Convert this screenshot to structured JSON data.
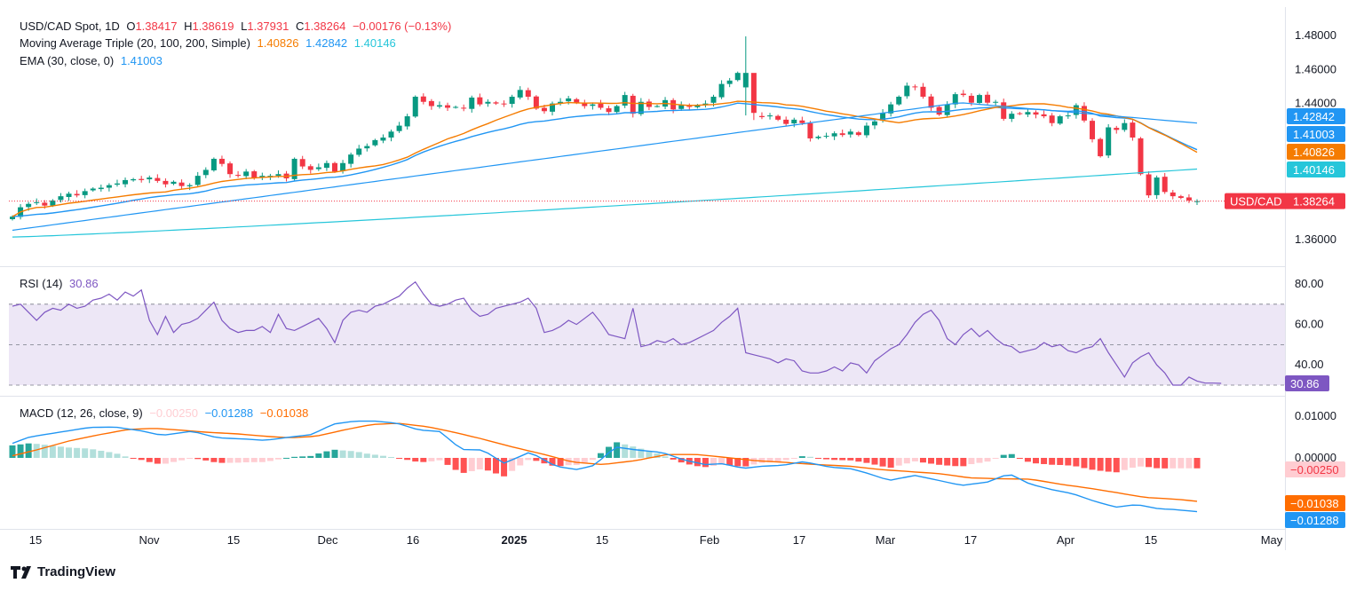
{
  "colors": {
    "up": "#089981",
    "down": "#f23645",
    "ma20": "#f57c00",
    "ma100": "#2196f3",
    "ma200": "#26c6da",
    "ema": "#2196f3",
    "rsi": "#7e57c2",
    "rsi_band": "#ede7f6",
    "macd": "#2196f3",
    "signal": "#ff6d00",
    "hist_up_strong": "#26a69a",
    "hist_up_weak": "#b2dfdb",
    "hist_down_strong": "#ff5252",
    "hist_down_weak": "#ffcdd2",
    "price_line": "#f23645"
  },
  "header": {
    "symbol": "USD/CAD Spot, 1D",
    "o_label": "O",
    "o_value": "1.38417",
    "h_label": "H",
    "h_value": "1.38619",
    "l_label": "L",
    "l_value": "1.37931",
    "c_label": "C",
    "c_value": "1.38264",
    "change": "−0.00176 (−0.13%)"
  },
  "ma_legend": {
    "label": "Moving Average Triple (20, 100, 200, Simple)",
    "v20": "1.40826",
    "v100": "1.42842",
    "v200": "1.40146"
  },
  "ema_legend": {
    "label": "EMA (30, close, 0)",
    "value": "1.41003"
  },
  "rsi_legend": {
    "label": "RSI (14)",
    "value": "30.86"
  },
  "macd_legend": {
    "label": "MACD (12, 26, close, 9)",
    "hist": "−0.00250",
    "macd": "−0.01288",
    "signal": "−0.01038"
  },
  "price_tag_label": "USD/CAD",
  "branding": "TradingView",
  "chart_data": [
    {
      "type": "candlestick",
      "title": "USD/CAD Spot, 1D",
      "x_tick_labels": [
        "15",
        "Nov",
        "15",
        "Dec",
        "16",
        "2025",
        "15",
        "Feb",
        "17",
        "Mar",
        "17",
        "Apr",
        "15",
        "May"
      ],
      "y_ticks": [
        "1.48000",
        "1.46000",
        "1.44000",
        "1.36000"
      ],
      "y_tags": [
        "1.42842",
        "1.41003",
        "1.40826",
        "1.40146",
        "1.38264"
      ],
      "ylim": [
        1.35,
        1.483
      ],
      "closes": [
        1.3735,
        1.379,
        1.381,
        1.382,
        1.38,
        1.383,
        1.3855,
        1.387,
        1.386,
        1.3885,
        1.39,
        1.3905,
        1.392,
        1.393,
        1.395,
        1.3955,
        1.395,
        1.3965,
        1.3945,
        1.3925,
        1.394,
        1.3915,
        1.392,
        1.3975,
        1.401,
        1.4075,
        1.4045,
        1.3985,
        1.3975,
        1.4,
        1.396,
        1.3975,
        1.3975,
        1.3985,
        1.396,
        1.4075,
        1.403,
        1.401,
        1.4025,
        1.405,
        1.4,
        1.405,
        1.41,
        1.4135,
        1.415,
        1.4185,
        1.42,
        1.4235,
        1.427,
        1.4325,
        1.444,
        1.441,
        1.4385,
        1.439,
        1.4375,
        1.438,
        1.437,
        1.4435,
        1.4395,
        1.441,
        1.44,
        1.4395,
        1.444,
        1.448,
        1.444,
        1.437,
        1.4355,
        1.44,
        1.441,
        1.443,
        1.4405,
        1.4385,
        1.4395,
        1.4375,
        1.435,
        1.4385,
        1.445,
        1.434,
        1.441,
        1.438,
        1.4385,
        1.442,
        1.4365,
        1.439,
        1.438,
        1.439,
        1.44,
        1.444,
        1.4515,
        1.4535,
        1.458,
        1.4345,
        1.4325,
        1.432,
        1.433,
        1.4305,
        1.428,
        1.4305,
        1.4285,
        1.4195,
        1.4205,
        1.421,
        1.4225,
        1.4215,
        1.4235,
        1.4215,
        1.427,
        1.4295,
        1.4345,
        1.4395,
        1.444,
        1.4505,
        1.45,
        1.444,
        1.4375,
        1.4335,
        1.4395,
        1.4455,
        1.445,
        1.4405,
        1.445,
        1.4405,
        1.441,
        1.431,
        1.434,
        1.434,
        1.435,
        1.4335,
        1.4325,
        1.4285,
        1.4325,
        1.433,
        1.439,
        1.43,
        1.419,
        1.409,
        1.426,
        1.4245,
        1.4285,
        1.42,
        1.3985,
        1.386,
        1.3965,
        1.388,
        1.3855,
        1.3845,
        1.383,
        1.3826
      ],
      "series": [
        {
          "name": "MA 20",
          "value_label": "1.40826"
        },
        {
          "name": "MA 100",
          "value_label": "1.42842"
        },
        {
          "name": "MA 200",
          "value_label": "1.40146"
        },
        {
          "name": "EMA 30",
          "value_label": "1.41003"
        }
      ]
    },
    {
      "type": "line",
      "title": "RSI (14)",
      "y_ticks": [
        "80.00",
        "60.00",
        "40.00"
      ],
      "ylim": [
        24,
        86
      ],
      "band": [
        30,
        70
      ],
      "midline": 50,
      "last_value": 30.86,
      "values": [
        69,
        70,
        66,
        62,
        66,
        68,
        67,
        70,
        68,
        69,
        72,
        73,
        75,
        72,
        76,
        74,
        77,
        62,
        55,
        64,
        56,
        60,
        61,
        63,
        67,
        71,
        62,
        58,
        56,
        57,
        57,
        59,
        56,
        65,
        58,
        57,
        59,
        61,
        63,
        58,
        51,
        62,
        66,
        67,
        66,
        69,
        70,
        72,
        74,
        78,
        81,
        75,
        70,
        69,
        70,
        72,
        73,
        67,
        64,
        65,
        68,
        69,
        70,
        71,
        73,
        68,
        56,
        57,
        59,
        62,
        60,
        63,
        66,
        61,
        55,
        54,
        53,
        68,
        49,
        50,
        52,
        51,
        53,
        50,
        51,
        53,
        55,
        57,
        61,
        64,
        68,
        46,
        45,
        44,
        43,
        41,
        43,
        42,
        37,
        36,
        36,
        37,
        39,
        37,
        41,
        40,
        36,
        42,
        45,
        48,
        50,
        55,
        61,
        65,
        67,
        62,
        53,
        50,
        55,
        58,
        54,
        57,
        53,
        50,
        49,
        46,
        47,
        48,
        51,
        49,
        50,
        47,
        46,
        48,
        49,
        53,
        46,
        40,
        34,
        41,
        44,
        46,
        40,
        36,
        30,
        30,
        34,
        32,
        31,
        31,
        30.86
      ]
    },
    {
      "type": "line",
      "title": "MACD (12, 26, close, 9)",
      "y_ticks": [
        "0.01000",
        "0.00000"
      ],
      "y_tags": [
        "−0.00250",
        "−0.01038",
        "−0.01288"
      ],
      "ylim": [
        -0.0145,
        0.0123
      ],
      "series": [
        {
          "name": "MACD",
          "value_label": "−0.01288"
        },
        {
          "name": "Signal",
          "value_label": "−0.01038"
        },
        {
          "name": "Histogram",
          "value_label": "−0.00250"
        }
      ],
      "macd_keyframes": [
        [
          0,
          0.0035
        ],
        [
          4,
          0.005
        ],
        [
          10,
          0.006
        ],
        [
          18,
          0.0073
        ],
        [
          24,
          0.0074
        ],
        [
          30,
          0.0065
        ],
        [
          35,
          0.0054
        ],
        [
          42,
          0.0064
        ],
        [
          48,
          0.0048
        ],
        [
          55,
          0.0045
        ],
        [
          59,
          0.0042
        ],
        [
          65,
          0.005
        ],
        [
          70,
          0.0056
        ],
        [
          75,
          0.0081
        ],
        [
          80,
          0.0088
        ],
        [
          85,
          0.0088
        ],
        [
          90,
          0.0083
        ],
        [
          95,
          0.0067
        ],
        [
          100,
          0.0063
        ],
        [
          105,
          0.002
        ],
        [
          110,
          0.0019
        ],
        [
          115,
          -0.0013
        ],
        [
          121,
          0.0014
        ],
        [
          127,
          -0.002
        ],
        [
          132,
          -0.0028
        ],
        [
          136,
          -0.0018
        ],
        [
          141,
          0.0026
        ],
        [
          146,
          0.0019
        ],
        [
          152,
          0.0013
        ],
        [
          157,
          -0.0005
        ],
        [
          162,
          -0.0016
        ],
        [
          166,
          -0.0014
        ],
        [
          171,
          -0.0025
        ],
        [
          175,
          -0.002
        ],
        [
          180,
          -0.0018
        ],
        [
          185,
          -0.0009
        ],
        [
          191,
          -0.0022
        ],
        [
          196,
          -0.0026
        ],
        [
          200,
          -0.0037
        ],
        [
          205,
          -0.0054
        ],
        [
          211,
          -0.0042
        ],
        [
          217,
          -0.0055
        ],
        [
          222,
          -0.0066
        ],
        [
          228,
          -0.0058
        ],
        [
          233,
          -0.0038
        ],
        [
          238,
          -0.0063
        ],
        [
          243,
          -0.0076
        ],
        [
          248,
          -0.0086
        ],
        [
          253,
          -0.0104
        ],
        [
          258,
          -0.0118
        ],
        [
          263,
          -0.0112
        ],
        [
          268,
          -0.0122
        ],
        [
          272,
          -0.0124
        ],
        [
          277,
          -0.0129
        ]
      ],
      "signal_keyframes": [
        [
          0,
          0.0005
        ],
        [
          6,
          0.002
        ],
        [
          13,
          0.004
        ],
        [
          20,
          0.0055
        ],
        [
          27,
          0.0068
        ],
        [
          33,
          0.0071
        ],
        [
          40,
          0.0066
        ],
        [
          46,
          0.0061
        ],
        [
          52,
          0.0058
        ],
        [
          59,
          0.0052
        ],
        [
          65,
          0.0048
        ],
        [
          71,
          0.0052
        ],
        [
          78,
          0.0068
        ],
        [
          84,
          0.008
        ],
        [
          90,
          0.0083
        ],
        [
          97,
          0.0075
        ],
        [
          103,
          0.0062
        ],
        [
          110,
          0.0045
        ],
        [
          117,
          0.0026
        ],
        [
          124,
          0.0009
        ],
        [
          131,
          -0.001
        ],
        [
          138,
          -0.0016
        ],
        [
          146,
          -0.0006
        ],
        [
          153,
          0.0008
        ],
        [
          160,
          0.0008
        ],
        [
          167,
          0.0001
        ],
        [
          174,
          -0.0007
        ],
        [
          181,
          -0.0011
        ],
        [
          188,
          -0.0016
        ],
        [
          196,
          -0.002
        ],
        [
          203,
          -0.0028
        ],
        [
          210,
          -0.0033
        ],
        [
          217,
          -0.0038
        ],
        [
          224,
          -0.0048
        ],
        [
          231,
          -0.005
        ],
        [
          238,
          -0.0051
        ],
        [
          245,
          -0.0063
        ],
        [
          252,
          -0.0073
        ],
        [
          258,
          -0.0083
        ],
        [
          265,
          -0.0095
        ],
        [
          272,
          -0.0099
        ],
        [
          277,
          -0.0104
        ]
      ]
    }
  ]
}
